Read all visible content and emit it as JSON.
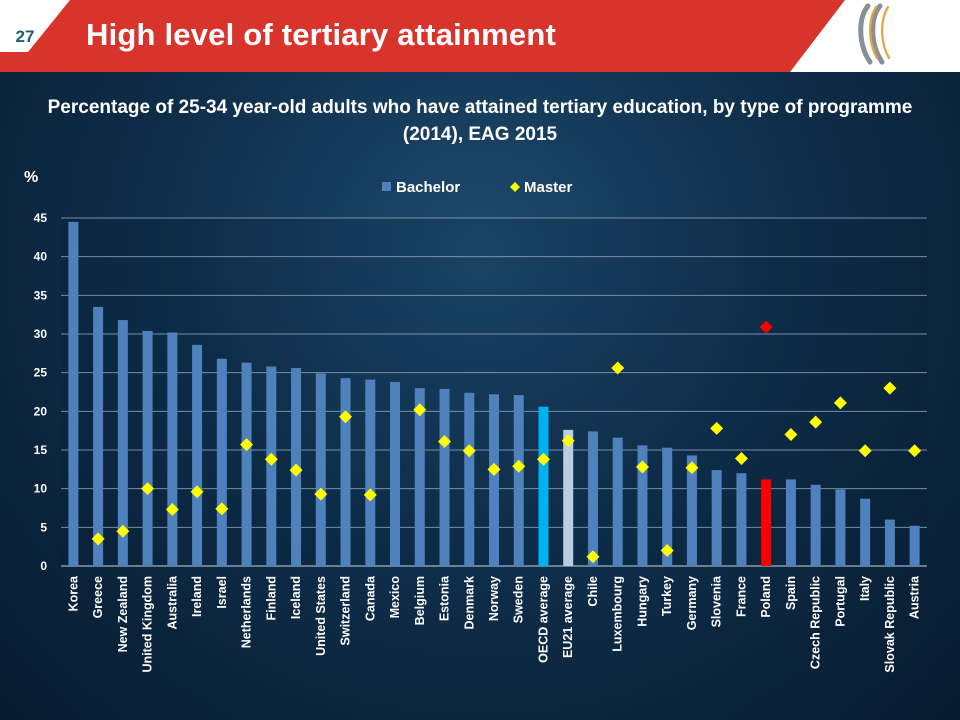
{
  "slide": {
    "page_number": "27",
    "title": "High level of tertiary attainment",
    "subtitle": "Percentage of 25-34 year-old adults who have attained tertiary education, by type of programme (2014), EAG 2015",
    "header_color": "#d9342b",
    "logo": "oecd-logo-icon"
  },
  "chart_data": {
    "type": "bar",
    "title": "",
    "xlabel": "",
    "ylabel": "%",
    "ylim": [
      0,
      45
    ],
    "yticks": [
      0,
      5,
      10,
      15,
      20,
      25,
      30,
      35,
      40,
      45
    ],
    "grid": true,
    "legend_position": "top-center",
    "categories": [
      "Korea",
      "Greece",
      "New Zealand",
      "United Kingdom",
      "Australia",
      "Ireland",
      "Israel",
      "Netherlands",
      "Finland",
      "Iceland",
      "United States",
      "Switzerland",
      "Canada",
      "Mexico",
      "Belgium",
      "Estonia",
      "Denmark",
      "Norway",
      "Sweden",
      "OECD average",
      "EU21 average",
      "Chile",
      "Luxembourg",
      "Hungary",
      "Turkey",
      "Germany",
      "Slovenia",
      "France",
      "Poland",
      "Spain",
      "Czech Republic",
      "Portugal",
      "Italy",
      "Slovak Republic",
      "Austria"
    ],
    "series": [
      {
        "name": "Bachelor",
        "type": "bar",
        "color": "#4f81bd",
        "values": [
          44.5,
          33.5,
          31.8,
          30.4,
          30.2,
          28.6,
          26.8,
          26.3,
          25.8,
          25.6,
          24.9,
          24.3,
          24.1,
          23.8,
          23.0,
          22.9,
          22.4,
          22.2,
          22.1,
          20.6,
          17.6,
          17.4,
          16.6,
          15.6,
          15.3,
          14.3,
          12.4,
          12.0,
          11.2,
          11.2,
          10.5,
          9.9,
          8.7,
          6.0,
          5.2
        ]
      },
      {
        "name": "Master",
        "type": "scatter",
        "color": "#ffff00",
        "values": [
          null,
          3.5,
          4.5,
          10.0,
          7.3,
          9.6,
          7.4,
          15.7,
          13.8,
          12.4,
          9.3,
          19.3,
          9.2,
          null,
          20.2,
          16.1,
          14.9,
          12.5,
          12.9,
          13.8,
          16.2,
          1.2,
          25.6,
          12.8,
          2.0,
          12.7,
          17.8,
          13.9,
          30.9,
          17.0,
          18.6,
          21.1,
          14.9,
          23.0,
          14.9
        ]
      }
    ],
    "highlight_colors": {
      "OECD average": "#00b0f0",
      "EU21 average": "#b9cde5",
      "Poland": "#ff0000"
    }
  }
}
